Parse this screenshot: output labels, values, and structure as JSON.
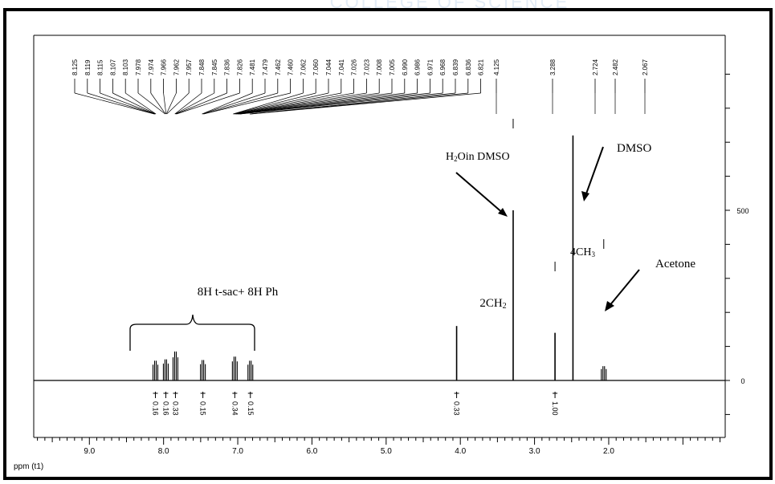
{
  "colors": {
    "ink": "#000000",
    "background": "#ffffff",
    "bleed": "#e6eef7"
  },
  "header_bleed_text": "COLLEGE OF SCIENCE",
  "chart_data": {
    "type": "line",
    "subtype": "1H-NMR spectrum",
    "title": "",
    "xlabel": "ppm (t1)",
    "ylabel": "",
    "x_reversed": true,
    "xlim": [
      9.75,
      0.43
    ],
    "ylim": [
      -95,
      900
    ],
    "x_ticks": [
      "9.0",
      "8.0",
      "7.0",
      "6.0",
      "5.0",
      "4.0",
      "3.0",
      "2.0"
    ],
    "y_ticks": [
      "500",
      "0"
    ],
    "peak_labels_top": [
      "8.125",
      "8.119",
      "8.115",
      "8.107",
      "8.103",
      "7.978",
      "7.974",
      "7.966",
      "7.962",
      "7.957",
      "7.848",
      "7.845",
      "7.836",
      "7.826",
      "7.481",
      "7.479",
      "7.462",
      "7.460",
      "7.062",
      "7.060",
      "7.044",
      "7.041",
      "7.026",
      "7.023",
      "7.008",
      "7.005",
      "6.990",
      "6.986",
      "6.971",
      "6.968",
      "6.839",
      "6.836",
      "6.821",
      "4.125",
      "3.288",
      "2.724",
      "2.482",
      "2.067"
    ],
    "peaks": [
      {
        "ppm": 8.11,
        "intensity": 58
      },
      {
        "ppm": 7.97,
        "intensity": 62
      },
      {
        "ppm": 7.84,
        "intensity": 85
      },
      {
        "ppm": 7.47,
        "intensity": 60
      },
      {
        "ppm": 7.04,
        "intensity": 70
      },
      {
        "ppm": 6.83,
        "intensity": 58
      },
      {
        "ppm": 4.05,
        "intensity": 160
      },
      {
        "ppm": 3.288,
        "intensity": 500
      },
      {
        "ppm": 2.724,
        "intensity": 140
      },
      {
        "ppm": 2.482,
        "intensity": 720
      },
      {
        "ppm": 2.067,
        "intensity": 42
      }
    ],
    "integrals": [
      {
        "ppm": 8.11,
        "value": "0.16"
      },
      {
        "ppm": 7.97,
        "value": "0.16"
      },
      {
        "ppm": 7.84,
        "value": "0.33"
      },
      {
        "ppm": 7.47,
        "value": "0.15"
      },
      {
        "ppm": 7.04,
        "value": "0.34"
      },
      {
        "ppm": 6.83,
        "value": "0.15"
      },
      {
        "ppm": 4.05,
        "value": "0.33"
      },
      {
        "ppm": 2.724,
        "value": "1.00"
      }
    ],
    "annotations": {
      "aromatic": "8H t-sac+ 8H Ph",
      "ch2": "2CH2",
      "water": "H2Oin DMSO",
      "dmso": "DMSO",
      "ch3": "4CH3",
      "acetone": "Acetone"
    }
  }
}
